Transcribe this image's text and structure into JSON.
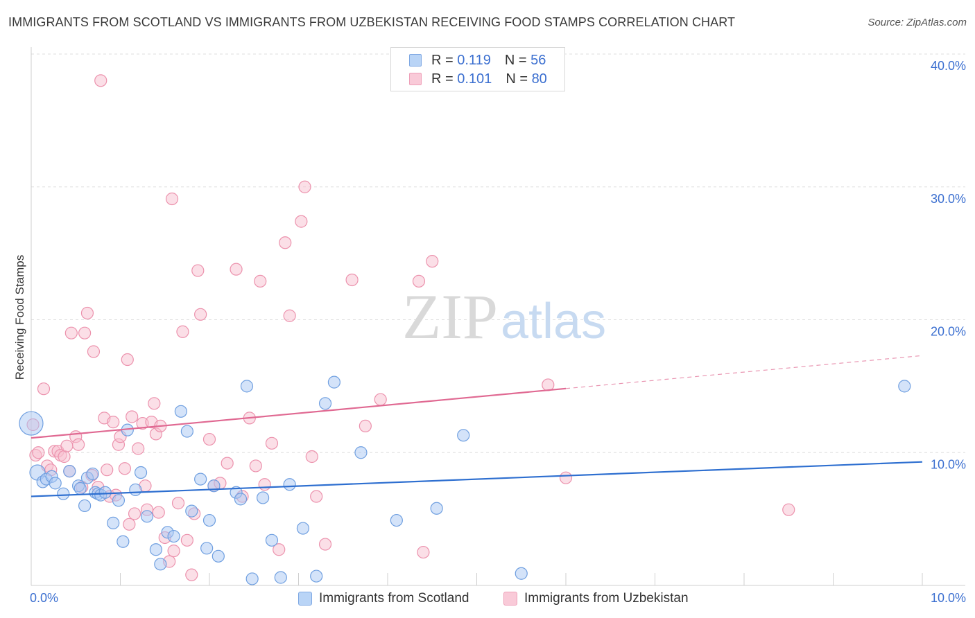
{
  "header": {
    "title": "IMMIGRANTS FROM SCOTLAND VS IMMIGRANTS FROM UZBEKISTAN RECEIVING FOOD STAMPS CORRELATION CHART",
    "source": "Source: ZipAtlas.com"
  },
  "legend": {
    "r_label": "R =",
    "n_label": "N =",
    "series": [
      {
        "r": "0.119",
        "n": "56"
      },
      {
        "r": "0.101",
        "n": "80"
      }
    ]
  },
  "watermark": {
    "part1": "ZIP",
    "part2": "atlas"
  },
  "colors": {
    "scotland_fill": "#a9c8f3",
    "scotland_stroke": "#6f9fe0",
    "scotland_line": "#2e6fd0",
    "uzbekistan_fill": "#f7bfd0",
    "uzbekistan_stroke": "#ec92ad",
    "uzbekistan_line": "#e06992",
    "axis_label_color": "#3b6fd0",
    "grid": "#dddddd"
  },
  "chart_data": {
    "type": "scatter",
    "title": "IMMIGRANTS FROM SCOTLAND VS IMMIGRANTS FROM UZBEKISTAN RECEIVING FOOD STAMPS CORRELATION CHART",
    "xlabel": "",
    "ylabel": "Receiving Food Stamps",
    "xlim": [
      0,
      10
    ],
    "ylim": [
      0,
      40
    ],
    "x_tick_labels": [
      "0.0%",
      "10.0%"
    ],
    "y_ticks": [
      10,
      20,
      30,
      40
    ],
    "y_tick_labels": [
      "10.0%",
      "20.0%",
      "30.0%",
      "40.0%"
    ],
    "grid": true,
    "series": [
      {
        "name": "Immigrants from Scotland",
        "r": 0.119,
        "n": 56,
        "trend": {
          "x0": 0,
          "y0": 6.7,
          "x1": 10,
          "y1": 9.3,
          "solid_until": 10
        },
        "points": [
          [
            0,
            12.2,
            "large"
          ],
          [
            0.07,
            8.5,
            "medium"
          ],
          [
            0.13,
            7.8
          ],
          [
            0.17,
            8.0
          ],
          [
            0.23,
            8.2
          ],
          [
            0.27,
            7.7
          ],
          [
            0.36,
            6.9
          ],
          [
            0.43,
            8.6
          ],
          [
            0.53,
            7.5
          ],
          [
            0.55,
            7.3
          ],
          [
            0.6,
            6.0
          ],
          [
            0.63,
            8.1
          ],
          [
            0.69,
            8.4
          ],
          [
            0.72,
            7.0
          ],
          [
            0.75,
            6.9
          ],
          [
            0.78,
            6.8
          ],
          [
            0.83,
            7.0
          ],
          [
            0.92,
            4.7
          ],
          [
            0.98,
            6.4
          ],
          [
            1.03,
            3.3
          ],
          [
            1.08,
            11.7
          ],
          [
            1.17,
            7.2
          ],
          [
            1.23,
            8.5
          ],
          [
            1.3,
            5.2
          ],
          [
            1.4,
            2.7
          ],
          [
            1.45,
            1.6
          ],
          [
            1.53,
            4.0
          ],
          [
            1.6,
            3.7
          ],
          [
            1.68,
            13.1
          ],
          [
            1.75,
            11.6
          ],
          [
            1.8,
            5.6
          ],
          [
            1.9,
            8.0
          ],
          [
            1.97,
            2.8
          ],
          [
            2.0,
            4.9
          ],
          [
            2.05,
            7.5
          ],
          [
            2.1,
            2.2
          ],
          [
            2.3,
            7.0
          ],
          [
            2.35,
            6.5
          ],
          [
            2.42,
            15.0
          ],
          [
            2.48,
            0.5
          ],
          [
            2.6,
            6.6
          ],
          [
            2.7,
            3.4
          ],
          [
            2.8,
            0.6
          ],
          [
            2.9,
            7.6
          ],
          [
            3.05,
            4.3
          ],
          [
            3.2,
            0.7
          ],
          [
            3.3,
            13.7
          ],
          [
            3.4,
            15.3
          ],
          [
            3.7,
            10.0
          ],
          [
            4.1,
            4.9
          ],
          [
            4.55,
            5.8
          ],
          [
            4.85,
            11.3
          ],
          [
            5.5,
            0.9
          ],
          [
            9.8,
            15.0
          ]
        ]
      },
      {
        "name": "Immigrants from Uzbekistan",
        "r": 0.101,
        "n": 80,
        "trend": {
          "x0": 0,
          "y0": 11.1,
          "x1": 10,
          "y1": 17.3,
          "solid_until": 6
        },
        "points": [
          [
            0.02,
            12.1
          ],
          [
            0.05,
            9.8
          ],
          [
            0.08,
            10.0
          ],
          [
            0.14,
            14.8
          ],
          [
            0.18,
            9.0
          ],
          [
            0.22,
            8.7
          ],
          [
            0.26,
            10.1
          ],
          [
            0.3,
            10.1
          ],
          [
            0.33,
            9.8
          ],
          [
            0.37,
            9.7
          ],
          [
            0.4,
            10.5
          ],
          [
            0.43,
            8.6
          ],
          [
            0.45,
            19.0
          ],
          [
            0.5,
            11.2
          ],
          [
            0.53,
            10.6
          ],
          [
            0.57,
            7.4
          ],
          [
            0.6,
            19.0
          ],
          [
            0.63,
            20.5
          ],
          [
            0.68,
            8.3
          ],
          [
            0.7,
            17.6
          ],
          [
            0.75,
            7.4
          ],
          [
            0.78,
            38.0
          ],
          [
            0.82,
            12.6
          ],
          [
            0.85,
            8.7
          ],
          [
            0.88,
            6.7
          ],
          [
            0.92,
            12.3
          ],
          [
            0.95,
            6.8
          ],
          [
            0.98,
            10.6
          ],
          [
            1.0,
            11.2
          ],
          [
            1.05,
            8.8
          ],
          [
            1.08,
            17.0
          ],
          [
            1.1,
            4.6
          ],
          [
            1.13,
            12.7
          ],
          [
            1.16,
            5.4
          ],
          [
            1.2,
            10.3
          ],
          [
            1.25,
            12.2
          ],
          [
            1.28,
            7.5
          ],
          [
            1.3,
            5.7
          ],
          [
            1.35,
            12.3
          ],
          [
            1.38,
            13.7
          ],
          [
            1.4,
            11.4
          ],
          [
            1.43,
            5.5
          ],
          [
            1.45,
            12.0
          ],
          [
            1.5,
            3.6
          ],
          [
            1.55,
            1.8
          ],
          [
            1.58,
            29.1
          ],
          [
            1.6,
            2.6
          ],
          [
            1.65,
            6.2
          ],
          [
            1.7,
            19.1
          ],
          [
            1.75,
            3.4
          ],
          [
            1.8,
            0.8
          ],
          [
            1.83,
            5.4
          ],
          [
            1.87,
            23.7
          ],
          [
            1.9,
            20.4
          ],
          [
            2.0,
            11.0
          ],
          [
            2.05,
            7.5
          ],
          [
            2.12,
            7.7
          ],
          [
            2.2,
            9.2
          ],
          [
            2.3,
            23.8
          ],
          [
            2.37,
            6.7
          ],
          [
            2.45,
            12.6
          ],
          [
            2.52,
            9.0
          ],
          [
            2.57,
            22.9
          ],
          [
            2.62,
            7.6
          ],
          [
            2.7,
            10.7
          ],
          [
            2.78,
            2.7
          ],
          [
            2.85,
            25.8
          ],
          [
            2.9,
            20.3
          ],
          [
            3.03,
            27.4
          ],
          [
            3.07,
            30.0
          ],
          [
            3.15,
            9.7
          ],
          [
            3.2,
            6.7
          ],
          [
            3.3,
            3.1
          ],
          [
            3.6,
            23.0
          ],
          [
            3.75,
            12.0
          ],
          [
            3.92,
            14.0
          ],
          [
            4.35,
            22.9
          ],
          [
            4.4,
            2.5
          ],
          [
            4.5,
            24.4
          ],
          [
            5.8,
            15.1
          ],
          [
            6.0,
            8.1
          ],
          [
            8.5,
            5.7
          ]
        ]
      }
    ]
  }
}
